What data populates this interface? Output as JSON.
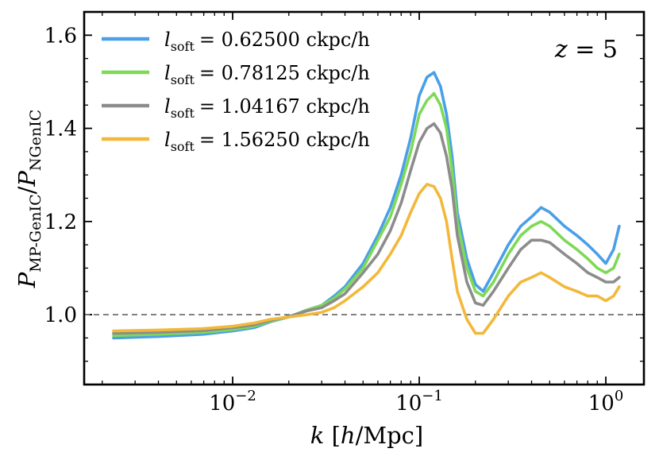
{
  "chart_data": {
    "type": "line",
    "annotation": "z = 5",
    "xlabel": "k [h/Mpc]",
    "ylabel": "P_MP-GenIC / P_NGenIC",
    "xscale": "log",
    "xlim": [
      0.0016,
      1.6
    ],
    "ylim": [
      0.85,
      1.65
    ],
    "x_ticks": [
      {
        "value": 0.01,
        "base": "10",
        "exp": "−2"
      },
      {
        "value": 0.1,
        "base": "10",
        "exp": "−1"
      },
      {
        "value": 1,
        "base": "10",
        "exp": "0"
      }
    ],
    "y_ticks": [
      {
        "value": 1.0,
        "label": "1.0"
      },
      {
        "value": 1.2,
        "label": "1.2"
      },
      {
        "value": 1.4,
        "label": "1.4"
      },
      {
        "value": 1.6,
        "label": "1.6"
      }
    ],
    "reference_line": 1.0,
    "legend_position": "top-left",
    "series": [
      {
        "name": "l_soft = 0.62500 ckpc/h",
        "label_var": "l",
        "label_sub": "soft",
        "label_value": "= 0.62500 ckpc/h",
        "color": "#4a9fe8",
        "x": [
          0.0023,
          0.004,
          0.007,
          0.01,
          0.013,
          0.016,
          0.02,
          0.025,
          0.03,
          0.035,
          0.04,
          0.05,
          0.06,
          0.07,
          0.08,
          0.09,
          0.1,
          0.11,
          0.12,
          0.13,
          0.14,
          0.15,
          0.16,
          0.18,
          0.2,
          0.22,
          0.25,
          0.3,
          0.35,
          0.4,
          0.45,
          0.5,
          0.6,
          0.7,
          0.8,
          0.9,
          1.0,
          1.1,
          1.18
        ],
        "y": [
          0.95,
          0.953,
          0.958,
          0.965,
          0.972,
          0.985,
          0.995,
          1.01,
          1.02,
          1.04,
          1.06,
          1.11,
          1.17,
          1.23,
          1.3,
          1.38,
          1.47,
          1.51,
          1.52,
          1.49,
          1.43,
          1.34,
          1.22,
          1.12,
          1.065,
          1.05,
          1.09,
          1.15,
          1.19,
          1.21,
          1.23,
          1.22,
          1.19,
          1.17,
          1.15,
          1.13,
          1.11,
          1.14,
          1.19
        ]
      },
      {
        "name": "l_soft = 0.78125 ckpc/h",
        "label_var": "l",
        "label_sub": "soft",
        "label_value": "= 0.78125 ckpc/h",
        "color": "#7ed957",
        "x": [
          0.0023,
          0.004,
          0.007,
          0.01,
          0.013,
          0.016,
          0.02,
          0.025,
          0.03,
          0.035,
          0.04,
          0.05,
          0.06,
          0.07,
          0.08,
          0.09,
          0.1,
          0.11,
          0.12,
          0.13,
          0.14,
          0.15,
          0.16,
          0.18,
          0.2,
          0.22,
          0.25,
          0.3,
          0.35,
          0.4,
          0.45,
          0.5,
          0.6,
          0.7,
          0.8,
          0.9,
          1.0,
          1.1,
          1.18
        ],
        "y": [
          0.955,
          0.958,
          0.962,
          0.968,
          0.975,
          0.986,
          0.995,
          1.01,
          1.02,
          1.035,
          1.055,
          1.1,
          1.16,
          1.21,
          1.28,
          1.35,
          1.43,
          1.46,
          1.475,
          1.45,
          1.4,
          1.31,
          1.2,
          1.1,
          1.05,
          1.04,
          1.07,
          1.13,
          1.17,
          1.19,
          1.2,
          1.19,
          1.16,
          1.14,
          1.12,
          1.1,
          1.09,
          1.1,
          1.13
        ]
      },
      {
        "name": "l_soft = 1.04167 ckpc/h",
        "label_var": "l",
        "label_sub": "soft",
        "label_value": "= 1.04167 ckpc/h",
        "color": "#8c8c8c",
        "x": [
          0.0023,
          0.004,
          0.007,
          0.01,
          0.013,
          0.016,
          0.02,
          0.025,
          0.03,
          0.035,
          0.04,
          0.05,
          0.06,
          0.07,
          0.08,
          0.09,
          0.1,
          0.11,
          0.12,
          0.13,
          0.14,
          0.15,
          0.16,
          0.18,
          0.2,
          0.22,
          0.25,
          0.3,
          0.35,
          0.4,
          0.45,
          0.5,
          0.6,
          0.7,
          0.8,
          0.9,
          1.0,
          1.1,
          1.18
        ],
        "y": [
          0.96,
          0.962,
          0.966,
          0.972,
          0.978,
          0.988,
          0.996,
          1.008,
          1.015,
          1.03,
          1.045,
          1.09,
          1.13,
          1.18,
          1.24,
          1.31,
          1.37,
          1.4,
          1.41,
          1.39,
          1.34,
          1.27,
          1.17,
          1.07,
          1.025,
          1.02,
          1.05,
          1.1,
          1.14,
          1.16,
          1.16,
          1.155,
          1.13,
          1.11,
          1.09,
          1.08,
          1.07,
          1.07,
          1.08
        ]
      },
      {
        "name": "l_soft = 1.56250 ckpc/h",
        "label_var": "l",
        "label_sub": "soft",
        "label_value": "= 1.56250 ckpc/h",
        "color": "#f2b83a",
        "x": [
          0.0023,
          0.004,
          0.007,
          0.01,
          0.013,
          0.016,
          0.02,
          0.025,
          0.03,
          0.035,
          0.04,
          0.05,
          0.06,
          0.07,
          0.08,
          0.09,
          0.1,
          0.11,
          0.12,
          0.13,
          0.14,
          0.15,
          0.16,
          0.18,
          0.2,
          0.22,
          0.25,
          0.3,
          0.35,
          0.4,
          0.45,
          0.5,
          0.6,
          0.7,
          0.8,
          0.9,
          1.0,
          1.1,
          1.18
        ],
        "y": [
          0.965,
          0.967,
          0.97,
          0.975,
          0.982,
          0.99,
          0.995,
          1.0,
          1.005,
          1.015,
          1.03,
          1.06,
          1.09,
          1.13,
          1.17,
          1.22,
          1.26,
          1.28,
          1.275,
          1.25,
          1.2,
          1.12,
          1.05,
          0.99,
          0.96,
          0.96,
          0.99,
          1.04,
          1.07,
          1.08,
          1.09,
          1.08,
          1.06,
          1.05,
          1.04,
          1.04,
          1.03,
          1.04,
          1.06
        ]
      }
    ]
  }
}
